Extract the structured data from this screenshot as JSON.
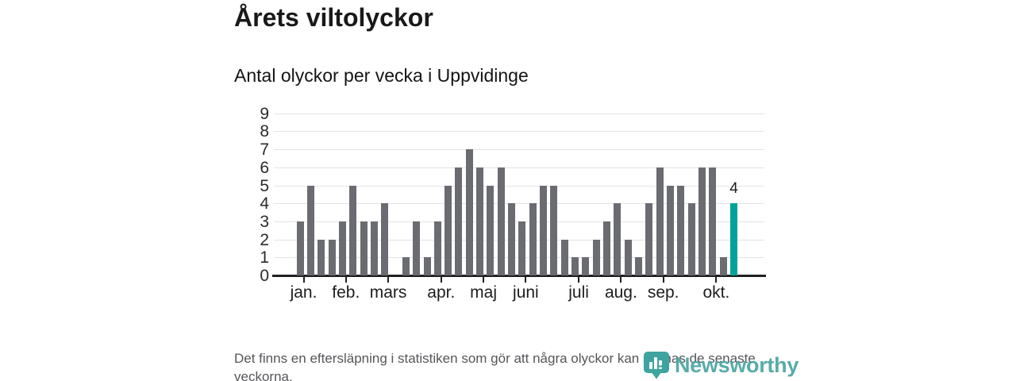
{
  "header": {
    "title": "Årets viltolyckor",
    "subtitle": "Antal olyckor per vecka i Uppvidinge"
  },
  "chart_data": {
    "type": "bar",
    "title": "Årets viltolyckor",
    "subtitle": "Antal olyckor per vecka i Uppvidinge",
    "x_unit": "vecka",
    "weeks": 42,
    "values": [
      3,
      5,
      2,
      2,
      3,
      5,
      3,
      3,
      4,
      0,
      1,
      3,
      1,
      3,
      5,
      6,
      7,
      6,
      5,
      6,
      4,
      3,
      4,
      5,
      5,
      2,
      1,
      1,
      2,
      3,
      4,
      2,
      1,
      4,
      6,
      5,
      5,
      4,
      6,
      6,
      1,
      4
    ],
    "highlight_last": true,
    "last_value_label": "4",
    "months": [
      {
        "label": "jan.",
        "week": 1
      },
      {
        "label": "feb.",
        "week": 5
      },
      {
        "label": "mars",
        "week": 9
      },
      {
        "label": "apr.",
        "week": 14
      },
      {
        "label": "maj",
        "week": 18
      },
      {
        "label": "juni",
        "week": 22
      },
      {
        "label": "juli",
        "week": 27
      },
      {
        "label": "aug.",
        "week": 31
      },
      {
        "label": "sep.",
        "week": 35
      },
      {
        "label": "okt.",
        "week": 40
      }
    ],
    "yticks": [
      0,
      1,
      2,
      3,
      4,
      5,
      6,
      7,
      8,
      9
    ],
    "ylim": [
      0,
      9
    ],
    "grid": true,
    "legend": "none",
    "colors": {
      "bar": "#6b6b72",
      "highlight": "#00a39b",
      "gridline": "#e3e3e3",
      "axis": "#202020",
      "logo": "#3da49f"
    }
  },
  "footer": {
    "note": "Det finns en eftersläpning i statistiken som gör att några olyckor kan saknas de senaste veckorna.",
    "logo_text": "Newsworthy"
  }
}
